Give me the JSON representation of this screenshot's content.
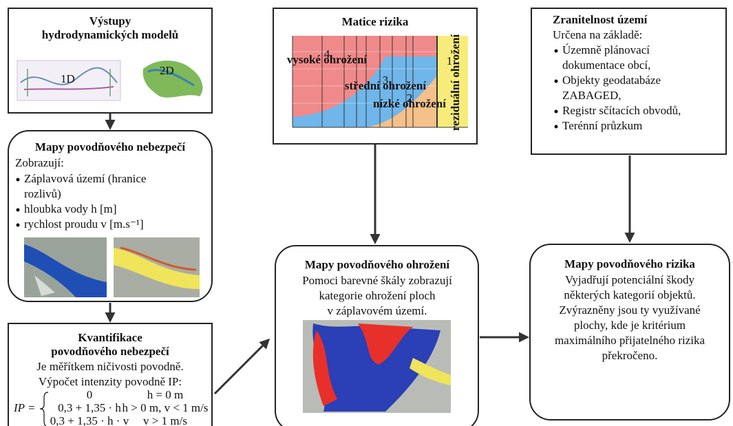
{
  "hydro_box": {
    "title": [
      "Výstupy",
      "hydrodynamických modelů"
    ],
    "labels": [
      "1D",
      "2D"
    ]
  },
  "hazard_box": {
    "title": "Mapy povodňového nebezpečí",
    "intro": "Zobrazují:",
    "bullets": [
      [
        "Záplavová území (hranice",
        "rozlivů)"
      ],
      [
        "hloubka vody h [m]"
      ],
      [
        "rychlost proudu v [m.s⁻¹]"
      ]
    ]
  },
  "quant_box": {
    "title": [
      "Kvantifikace",
      "povodňového nebezpečí"
    ],
    "lines": [
      "Je měřítkem ničivosti povodně.",
      "Výpočet intenzity povodně IP:"
    ],
    "formula": {
      "lhs": "IP =",
      "rows": [
        [
          "0",
          "h = 0 m"
        ],
        [
          "0,3 + 1,35 · h",
          "h > 0 m, v < 1 m/s"
        ],
        [
          "0,3 + 1,35 · h · v",
          "v > 1 m/s"
        ]
      ]
    }
  },
  "matrix_box": {
    "title": "Matice rizika",
    "zones": [
      {
        "number": "4",
        "label": "vysoké ohrožení"
      },
      {
        "number": "3",
        "label": "střední ohrožení"
      },
      {
        "number": "2",
        "label": "nízké ohrožení"
      },
      {
        "number": "1",
        "label": "reziduální ohrožení"
      }
    ]
  },
  "threat_box": {
    "title": "Mapy povodňového ohrožení",
    "lines": [
      "Pomoci barevné škály zobrazují",
      "kategorie ohrožení ploch",
      "v záplavovém území."
    ]
  },
  "vuln_box": {
    "title": "Zranitelnost území",
    "intro": "Určena na základě:",
    "bullets": [
      [
        "Územně plánovací",
        "dokumentace obcí,"
      ],
      [
        "Objekty geodatabáze",
        "ZABAGED,"
      ],
      [
        "Registr sčítacích obvodů,"
      ],
      [
        "Terénní průzkum"
      ]
    ]
  },
  "risk_box": {
    "title": "Mapy povodňového rizika",
    "lines": [
      "Vyjadřují potenciální škody",
      "některých kategorií objektů.",
      "Zvýrazněny jsou ty využívané",
      "plochy, kde je kritérium",
      "maximálního přijatelného rizika",
      "překročeno."
    ]
  }
}
